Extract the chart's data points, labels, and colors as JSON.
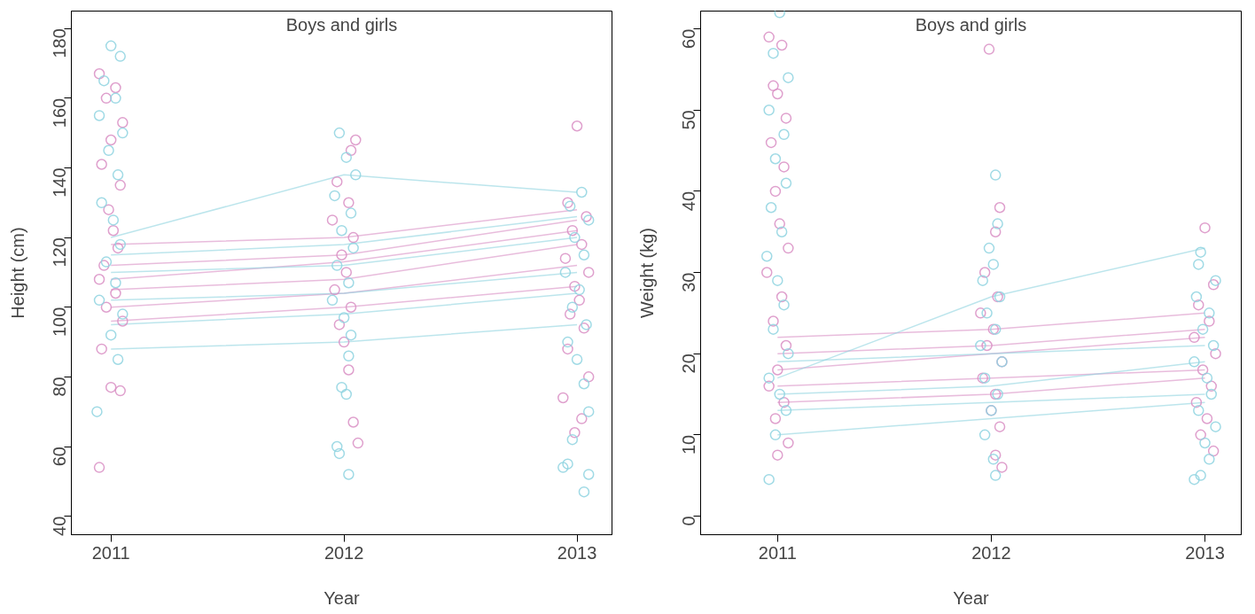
{
  "chart_data": [
    {
      "type": "scatter",
      "title": "Boys and girls",
      "xlabel": "Year",
      "ylabel": "Height (cm)",
      "xlim": [
        2010.83,
        2013.15
      ],
      "ylim": [
        34.7,
        185
      ],
      "xticks": [
        2011,
        2012,
        2013
      ],
      "yticks": [
        40,
        60,
        80,
        100,
        120,
        140,
        160,
        180
      ],
      "grid": false,
      "marker": "circle",
      "series": [
        {
          "type": "line",
          "marker": "none",
          "color": "#d98fc4",
          "x": [
            2011,
            2012,
            2013
          ],
          "values": [
            112,
            115,
            125
          ]
        },
        {
          "type": "line",
          "marker": "none",
          "color": "#d98fc4",
          "x": [
            2011,
            2012,
            2013
          ],
          "values": [
            105,
            108,
            118
          ]
        },
        {
          "type": "line",
          "marker": "none",
          "color": "#d98fc4",
          "x": [
            2011,
            2012,
            2013
          ],
          "values": [
            100,
            104,
            112
          ]
        },
        {
          "type": "line",
          "marker": "none",
          "color": "#d98fc4",
          "x": [
            2011,
            2012,
            2013
          ],
          "values": [
            118,
            120,
            128
          ]
        },
        {
          "type": "line",
          "marker": "none",
          "color": "#d98fc4",
          "x": [
            2011,
            2012,
            2013
          ],
          "values": [
            96,
            100,
            106
          ]
        },
        {
          "type": "line",
          "marker": "none",
          "color": "#d98fc4",
          "x": [
            2011,
            2012,
            2013
          ],
          "values": [
            108,
            113,
            122
          ]
        },
        {
          "type": "line",
          "marker": "none",
          "color": "#8fd3e0",
          "x": [
            2011,
            2012,
            2013
          ],
          "values": [
            88,
            90,
            95
          ]
        },
        {
          "type": "line",
          "marker": "none",
          "color": "#8fd3e0",
          "x": [
            2011,
            2012,
            2013
          ],
          "values": [
            120,
            138,
            133
          ]
        },
        {
          "type": "line",
          "marker": "none",
          "color": "#8fd3e0",
          "x": [
            2011,
            2012,
            2013
          ],
          "values": [
            102,
            104,
            110
          ]
        },
        {
          "type": "line",
          "marker": "none",
          "color": "#8fd3e0",
          "x": [
            2011,
            2012,
            2013
          ],
          "values": [
            110,
            112,
            120
          ]
        },
        {
          "type": "line",
          "marker": "none",
          "color": "#8fd3e0",
          "x": [
            2011,
            2012,
            2013
          ],
          "values": [
            95,
            98,
            104
          ]
        },
        {
          "type": "line",
          "marker": "none",
          "color": "#8fd3e0",
          "x": [
            2011,
            2012,
            2013
          ],
          "values": [
            115,
            118,
            126
          ]
        },
        {
          "color": "#d98fc4",
          "x": [
            2010.95,
            2011.02,
            2010.98,
            2011.05,
            2011.0,
            2010.96,
            2011.04,
            2010.99,
            2011.01,
            2011.03,
            2010.97,
            2010.95,
            2011.02,
            2010.98,
            2011.05,
            2010.96,
            2011.0,
            2011.04,
            2010.95
          ],
          "values": [
            167,
            163,
            160,
            153,
            148,
            141,
            135,
            128,
            122,
            117,
            112,
            108,
            104,
            100,
            96,
            88,
            77,
            76,
            54
          ]
        },
        {
          "color": "#8fd3e0",
          "x": [
            2011.0,
            2011.04,
            2010.97,
            2011.02,
            2010.95,
            2011.05,
            2010.99,
            2011.03,
            2010.96,
            2011.01,
            2011.04,
            2010.98,
            2011.02,
            2010.95,
            2011.05,
            2011.0,
            2011.03,
            2010.94
          ],
          "values": [
            175,
            172,
            165,
            160,
            155,
            150,
            145,
            138,
            130,
            125,
            118,
            113,
            107,
            102,
            98,
            92,
            85,
            70
          ]
        },
        {
          "color": "#d98fc4",
          "x": [
            2012.05,
            2012.03,
            2011.97,
            2012.02,
            2011.95,
            2012.04,
            2011.99,
            2012.01,
            2011.96,
            2012.03,
            2011.98,
            2012.0,
            2012.02,
            2012.04,
            2012.06
          ],
          "values": [
            148,
            145,
            136,
            130,
            125,
            120,
            115,
            110,
            105,
            100,
            95,
            90,
            82,
            67,
            61
          ]
        },
        {
          "color": "#8fd3e0",
          "x": [
            2011.98,
            2012.01,
            2012.05,
            2011.96,
            2012.03,
            2011.99,
            2012.04,
            2011.97,
            2012.02,
            2011.95,
            2012.0,
            2012.03,
            2012.02,
            2011.99,
            2012.01,
            2011.97,
            2011.98,
            2012.02
          ],
          "values": [
            150,
            143,
            138,
            132,
            127,
            122,
            117,
            112,
            107,
            102,
            97,
            92,
            86,
            77,
            75,
            60,
            58,
            52
          ]
        },
        {
          "color": "#d98fc4",
          "x": [
            2013.0,
            2012.96,
            2013.04,
            2012.98,
            2013.02,
            2012.95,
            2013.05,
            2012.99,
            2013.01,
            2012.97,
            2013.03,
            2012.96,
            2013.05,
            2012.94,
            2013.02,
            2012.99
          ],
          "values": [
            152,
            130,
            126,
            122,
            118,
            114,
            110,
            106,
            102,
            98,
            94,
            88,
            80,
            74,
            68,
            64
          ]
        },
        {
          "color": "#8fd3e0",
          "x": [
            2013.02,
            2012.97,
            2013.05,
            2012.99,
            2013.03,
            2012.95,
            2013.01,
            2012.98,
            2013.04,
            2012.96,
            2013.0,
            2013.03,
            2013.05,
            2012.98,
            2012.96,
            2012.94,
            2013.05,
            2013.03
          ],
          "values": [
            133,
            129,
            125,
            120,
            115,
            110,
            105,
            100,
            95,
            90,
            85,
            78,
            70,
            62,
            55,
            54,
            52,
            47
          ]
        }
      ]
    },
    {
      "type": "scatter",
      "title": "Boys and girls",
      "xlabel": "Year",
      "ylabel": "Weight (kg)",
      "xlim": [
        2010.64,
        2013.17
      ],
      "ylim": [
        -2.3,
        62.2
      ],
      "xticks": [
        2011,
        2012,
        2013
      ],
      "yticks": [
        0,
        10,
        20,
        30,
        40,
        50,
        60
      ],
      "grid": false,
      "marker": "circle",
      "series": [
        {
          "type": "line",
          "marker": "none",
          "color": "#d98fc4",
          "x": [
            2011,
            2012,
            2013
          ],
          "values": [
            22,
            23,
            25
          ]
        },
        {
          "type": "line",
          "marker": "none",
          "color": "#d98fc4",
          "x": [
            2011,
            2012,
            2013
          ],
          "values": [
            18,
            20,
            22
          ]
        },
        {
          "type": "line",
          "marker": "none",
          "color": "#d98fc4",
          "x": [
            2011,
            2012,
            2013
          ],
          "values": [
            16,
            17,
            18
          ]
        },
        {
          "type": "line",
          "marker": "none",
          "color": "#d98fc4",
          "x": [
            2011,
            2012,
            2013
          ],
          "values": [
            14,
            15,
            17
          ]
        },
        {
          "type": "line",
          "marker": "none",
          "color": "#d98fc4",
          "x": [
            2011,
            2012,
            2013
          ],
          "values": [
            20,
            21,
            23
          ]
        },
        {
          "type": "line",
          "marker": "none",
          "color": "#8fd3e0",
          "x": [
            2011,
            2012,
            2013
          ],
          "values": [
            10,
            12,
            14
          ]
        },
        {
          "type": "line",
          "marker": "none",
          "color": "#8fd3e0",
          "x": [
            2011,
            2012,
            2013
          ],
          "values": [
            17,
            27,
            33
          ]
        },
        {
          "type": "line",
          "marker": "none",
          "color": "#8fd3e0",
          "x": [
            2011,
            2012,
            2013
          ],
          "values": [
            15,
            16,
            19
          ]
        },
        {
          "type": "line",
          "marker": "none",
          "color": "#8fd3e0",
          "x": [
            2011,
            2012,
            2013
          ],
          "values": [
            19,
            20,
            21
          ]
        },
        {
          "type": "line",
          "marker": "none",
          "color": "#8fd3e0",
          "x": [
            2011,
            2012,
            2013
          ],
          "values": [
            13,
            14,
            15
          ]
        },
        {
          "color": "#d98fc4",
          "x": [
            2010.96,
            2011.02,
            2010.98,
            2011.0,
            2011.04,
            2010.97,
            2011.03,
            2010.99,
            2011.01,
            2011.05,
            2010.95,
            2011.02,
            2010.98,
            2011.04,
            2011.0,
            2010.96,
            2011.03,
            2010.99,
            2011.05,
            2011.0
          ],
          "values": [
            59,
            58,
            53,
            52,
            49,
            46,
            43,
            40,
            36,
            33,
            30,
            27,
            24,
            21,
            18,
            16,
            14,
            12,
            9,
            7.5
          ]
        },
        {
          "color": "#8fd3e0",
          "x": [
            2011.01,
            2010.98,
            2011.05,
            2010.96,
            2011.03,
            2010.99,
            2011.04,
            2010.97,
            2011.02,
            2010.95,
            2011.0,
            2011.03,
            2010.98,
            2011.05,
            2010.96,
            2011.01,
            2011.04,
            2010.99,
            2010.96
          ],
          "values": [
            62,
            57,
            54,
            50,
            47,
            44,
            41,
            38,
            35,
            32,
            29,
            26,
            23,
            20,
            17,
            15,
            13,
            10,
            4.5
          ]
        },
        {
          "color": "#d98fc4",
          "x": [
            2011.99,
            2012.04,
            2012.02,
            2011.97,
            2012.03,
            2011.95,
            2012.01,
            2011.98,
            2012.05,
            2011.96,
            2012.02,
            2012.0,
            2012.04,
            2012.02,
            2012.05
          ],
          "values": [
            57.5,
            38,
            35,
            30,
            27,
            25,
            23,
            21,
            19,
            17,
            15,
            13,
            11,
            7.5,
            6
          ]
        },
        {
          "color": "#8fd3e0",
          "x": [
            2012.02,
            2012.03,
            2011.99,
            2012.01,
            2011.96,
            2012.04,
            2011.98,
            2012.02,
            2011.95,
            2012.05,
            2011.97,
            2012.03,
            2012.0,
            2011.97,
            2012.01,
            2012.02
          ],
          "values": [
            42,
            36,
            33,
            31,
            29,
            27,
            25,
            23,
            21,
            19,
            17,
            15,
            13,
            10,
            7,
            5
          ]
        },
        {
          "color": "#d98fc4",
          "x": [
            2013.0,
            2013.04,
            2012.97,
            2013.02,
            2012.95,
            2013.05,
            2012.99,
            2013.03,
            2012.96,
            2013.01,
            2012.98,
            2013.04
          ],
          "values": [
            35.5,
            28.5,
            26,
            24,
            22,
            20,
            18,
            16,
            14,
            12,
            10,
            8
          ]
        },
        {
          "color": "#8fd3e0",
          "x": [
            2012.98,
            2012.97,
            2013.05,
            2012.96,
            2013.02,
            2012.99,
            2013.04,
            2012.95,
            2013.01,
            2013.03,
            2012.97,
            2013.05,
            2013.0,
            2013.02,
            2012.98,
            2012.95
          ],
          "values": [
            32.5,
            31,
            29,
            27,
            25,
            23,
            21,
            19,
            17,
            15,
            13,
            11,
            9,
            7,
            5,
            4.5
          ]
        }
      ]
    }
  ]
}
